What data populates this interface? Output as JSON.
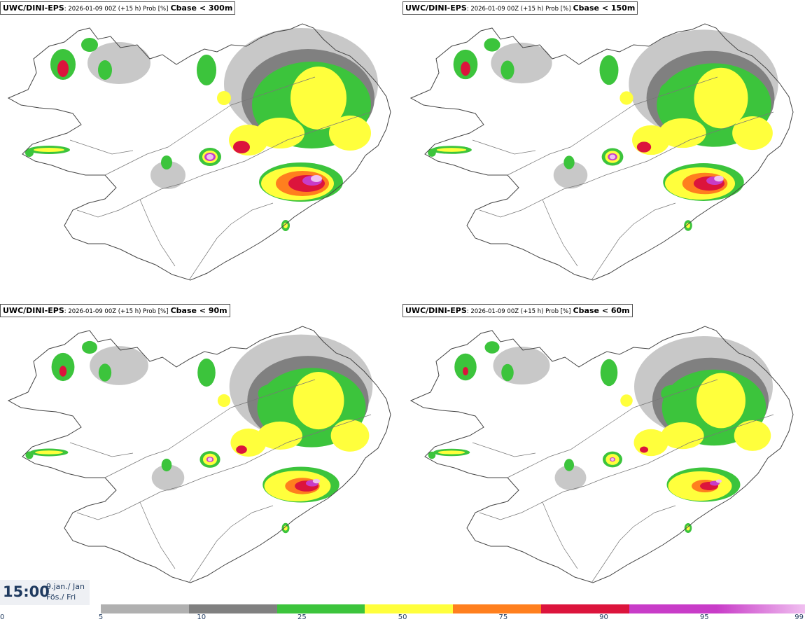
{
  "panels": [
    {
      "model": "UWC/DINI-EPS",
      "run_info": ": 2026-01-09 00Z (+15 h) Prob [%]",
      "threshold": "Cbase < 300m"
    },
    {
      "model": "UWC/DINI-EPS",
      "run_info": ": 2026-01-09 00Z (+15 h) Prob [%]",
      "threshold": "Cbase < 150m"
    },
    {
      "model": "UWC/DINI-EPS",
      "run_info": ": 2026-01-09 00Z (+15 h) Prob [%]",
      "threshold": "Cbase < 90m"
    },
    {
      "model": "UWC/DINI-EPS",
      "run_info": ": 2026-01-09 00Z (+15 h) Prob [%]",
      "threshold": "Cbase < 60m"
    }
  ],
  "valid_time": {
    "time": "15:00",
    "date_line1": "9.jan./ Jan",
    "date_line2": "Fös./ Fri"
  },
  "legend": {
    "labels": [
      "0",
      "5",
      "10",
      "25",
      "50",
      "75",
      "90",
      "95",
      "99"
    ],
    "colors": [
      "#ffffff",
      "#b0b0b0",
      "#808080",
      "#3cc43c",
      "#ffff3c",
      "#ff7f1e",
      "#dc143c",
      "#c83cc8",
      "#f0c0f0"
    ]
  },
  "map_colors": {
    "coast": "#444444",
    "roads": "#777777",
    "gray_light": "#b0b0b0",
    "gray_dark": "#808080",
    "green": "#3cc43c",
    "yellow": "#ffff3c",
    "orange": "#ff7f1e",
    "red": "#dc143c",
    "magenta": "#c83cc8",
    "pink": "#f0c0f0"
  }
}
